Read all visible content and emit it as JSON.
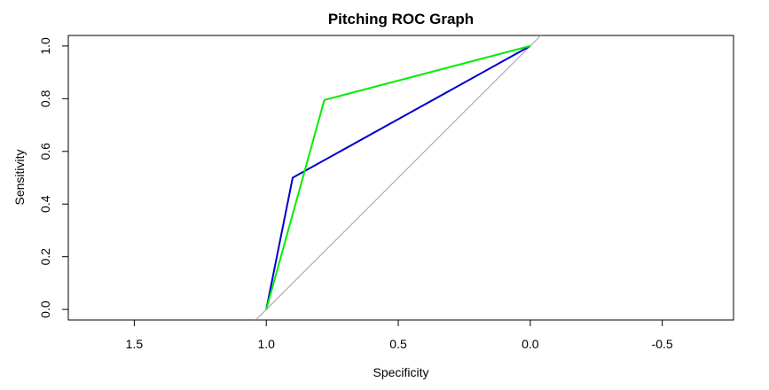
{
  "chart_data": {
    "type": "line",
    "title": "Pitching ROC Graph",
    "xlabel": "Specificity",
    "ylabel": "Sensitivity",
    "xlim": [
      1.75,
      -0.77
    ],
    "ylim": [
      -0.04,
      1.04
    ],
    "x_reversed": true,
    "grid": false,
    "legend": "none",
    "x_ticks": [
      1.5,
      1.0,
      0.5,
      0.0,
      -0.5
    ],
    "x_tick_labels": [
      "1.5",
      "1.0",
      "0.5",
      "0.0",
      "-0.5"
    ],
    "y_ticks": [
      0.0,
      0.2,
      0.4,
      0.6,
      0.8,
      1.0
    ],
    "y_tick_labels": [
      "0.0",
      "0.2",
      "0.4",
      "0.6",
      "0.8",
      "1.0"
    ],
    "reference_line": {
      "color": "#a0a0a0",
      "x": [
        1.04,
        -0.04
      ],
      "y": [
        -0.04,
        1.04
      ]
    },
    "series": [
      {
        "color": "#0000cd",
        "x": [
          1.0,
          0.9,
          0.0
        ],
        "y": [
          0.0,
          0.5,
          1.0
        ]
      },
      {
        "color": "#00ee00",
        "x": [
          1.0,
          0.78,
          0.0
        ],
        "y": [
          0.0,
          0.795,
          1.0
        ]
      }
    ]
  }
}
